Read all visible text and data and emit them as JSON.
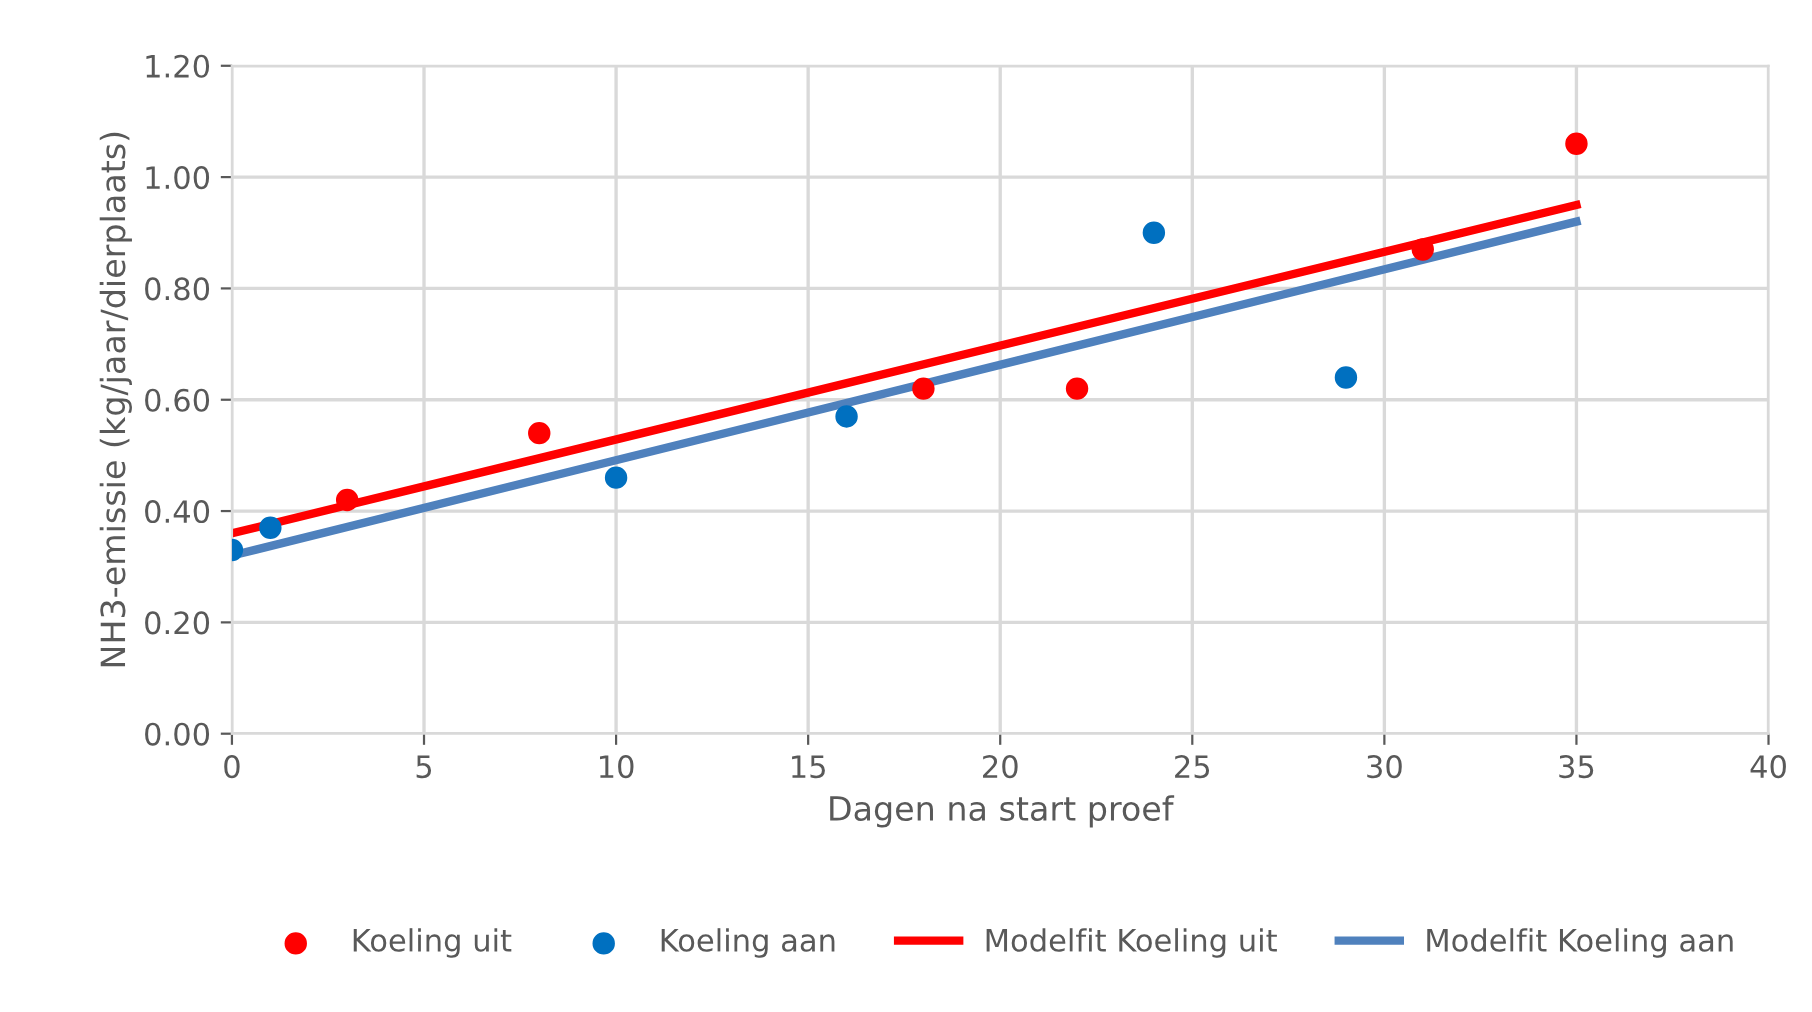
{
  "chart_data": {
    "type": "scatter",
    "xlabel": "Dagen na start proef",
    "ylabel": "NH3-emissie (kg/jaar/dierplaats)",
    "xlim": [
      0,
      40
    ],
    "xticks": [
      0,
      5,
      10,
      15,
      20,
      25,
      30,
      35,
      40
    ],
    "ylim": [
      0,
      1.2
    ],
    "yticks": [
      {
        "value": 0,
        "label": "0.00"
      },
      {
        "value": 0.2,
        "label": "0.20"
      },
      {
        "value": 0.4,
        "label": "0.40"
      },
      {
        "value": 0.6,
        "label": "0.60"
      },
      {
        "value": 0.8,
        "label": "0.80"
      },
      {
        "value": 1.0,
        "label": "1.00"
      },
      {
        "value": 1.2,
        "label": "1.20"
      }
    ],
    "grid": true,
    "legend": "bottom",
    "series": [
      {
        "name": "Koeling uit",
        "marker": "circle",
        "color": "#ff0000",
        "x": [
          3,
          8,
          18,
          22,
          31,
          35
        ],
        "values": [
          0.42,
          0.54,
          0.62,
          0.62,
          0.87,
          1.06
        ]
      },
      {
        "name": "Koeling aan",
        "marker": "circle",
        "color": "#0070c0",
        "x": [
          0,
          1,
          10,
          16,
          24,
          29
        ],
        "values": [
          0.33,
          0.37,
          0.46,
          0.57,
          0.9,
          0.64
        ]
      },
      {
        "name": "Modelfit Koeling uit",
        "type": "line",
        "color": "#ff0000",
        "x": [
          0,
          35
        ],
        "values": [
          0.36,
          0.95
        ]
      },
      {
        "name": "Modelfit Koeling aan",
        "type": "line",
        "color": "#4f81bd",
        "x": [
          0,
          35
        ],
        "values": [
          0.32,
          0.92
        ]
      }
    ]
  }
}
